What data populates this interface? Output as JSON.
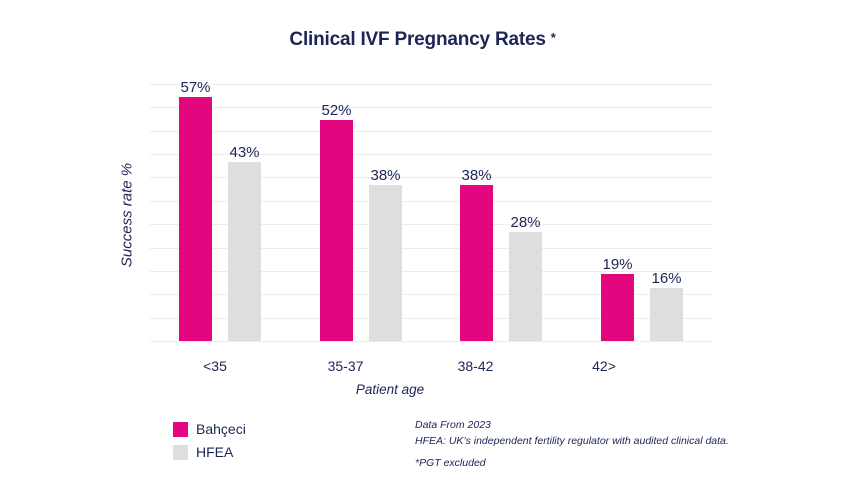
{
  "colors": {
    "background": "#FFFFFF",
    "navy": "#1B2556",
    "pink": "#E2077F",
    "bar_gray": "#DEDEDE",
    "gridline": "#ECECEC"
  },
  "header": {
    "title": "Clinical IVF Pregnancy Rates",
    "asterisk": "*"
  },
  "chart_data": {
    "type": "bar",
    "title": "Clinical IVF Pregnancy Rates *",
    "categories": [
      "<35",
      "35-37",
      "38-42",
      "42>"
    ],
    "series": [
      {
        "name": "Bahçeci",
        "color": "#E2077F",
        "values": [
          57,
          52,
          38,
          19
        ]
      },
      {
        "name": "HFEA",
        "color": "#DEDEDE",
        "values": [
          43,
          38,
          28,
          16
        ]
      }
    ],
    "value_suffix": "%",
    "xlabel": "Patient age",
    "ylabel": "Success rate %",
    "ylim": [
      0,
      60
    ],
    "grid": true,
    "gridline_count": 12,
    "legend_position": "bottom-left"
  },
  "legend": {
    "items": [
      {
        "label": "Bahçeci",
        "color": "#E2077F"
      },
      {
        "label": "HFEA",
        "color": "#DEDEDE"
      }
    ]
  },
  "footnotes": {
    "line1": "Data From 2023",
    "line2": "HFEA: UK’s independent fertility regulator with audited clinical data.",
    "line3": "*PGT excluded"
  }
}
